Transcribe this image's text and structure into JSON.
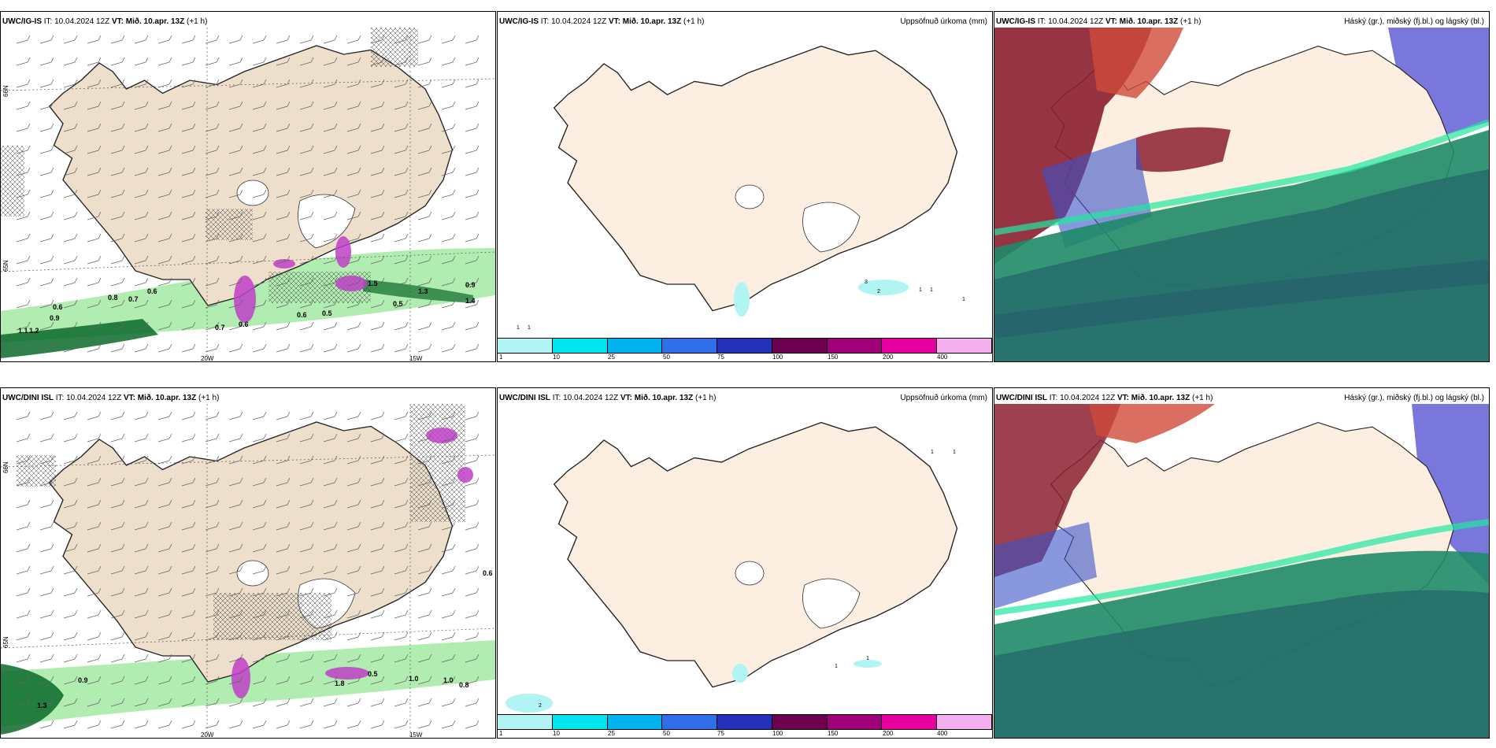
{
  "panels": {
    "top_wind": {
      "model": "UWC/IG-IS",
      "it_label": "IT:",
      "it": "10.04.2024 12Z",
      "vt_label": "VT:",
      "vt": "Mið. 10.apr. 13Z",
      "lead": "(+1 h)",
      "right_title": "",
      "lat_ticks": [
        "66N",
        "65N"
      ],
      "lon_ticks": [
        "20W",
        "15W"
      ],
      "values": [
        "1.1",
        "1.2",
        "0.9",
        "0.6",
        "0.8",
        "0.7",
        "0.6",
        "0.7",
        "0.6",
        "0.6",
        "0.5",
        "1.5",
        "0.5",
        "1.3",
        "0.9",
        "1.4"
      ]
    },
    "top_precip": {
      "model": "UWC/IG-IS",
      "it_label": "IT:",
      "it": "10.04.2024 12Z",
      "vt_label": "VT:",
      "vt": "Mið. 10.apr. 13Z",
      "lead": "(+1 h)",
      "right_title": "Uppsöfnuð úrkoma (mm)",
      "values": [
        "1",
        "1",
        "3",
        "2",
        "1",
        "1",
        "1"
      ]
    },
    "top_cloud": {
      "model": "UWC/IG-IS",
      "it_label": "IT:",
      "it": "10.04.2024 12Z",
      "vt_label": "VT:",
      "vt": "Mið. 10.apr. 13Z",
      "lead": "(+1 h)",
      "right_title": "Háský (gr.), miðský (fj.bl.) og lágský (bl.)"
    },
    "bot_wind": {
      "model": "UWC/DINI ISL",
      "it_label": "IT:",
      "it": "10.04.2024 12Z",
      "vt_label": "VT:",
      "vt": "Mið. 10.apr. 13Z",
      "lead": "(+1 h)",
      "right_title": "",
      "lat_ticks": [
        "66N",
        "65N"
      ],
      "lon_ticks": [
        "20W",
        "15W"
      ],
      "values": [
        "0.9",
        "1.3",
        "1.8",
        "0.5",
        "1.0",
        "1.0",
        "0.8",
        "0.6"
      ]
    },
    "bot_precip": {
      "model": "UWC/DINI ISL",
      "it_label": "IT:",
      "it": "10.04.2024 12Z",
      "vt_label": "VT:",
      "vt": "Mið. 10.apr. 13Z",
      "lead": "(+1 h)",
      "right_title": "Uppsöfnuð úrkoma (mm)",
      "values": [
        "1",
        "1",
        "1",
        "1",
        "2"
      ]
    },
    "bot_cloud": {
      "model": "UWC/DINI ISL",
      "it_label": "IT:",
      "it": "10.04.2024 12Z",
      "vt_label": "VT:",
      "vt": "Mið. 10.apr. 13Z",
      "lead": "(+1 h)",
      "right_title": "Háský (gr.), miðský (fj.bl.) og lágský (bl.)"
    }
  },
  "colorbar": {
    "labels": [
      "1",
      "10",
      "25",
      "50",
      "75",
      "100",
      "150",
      "200",
      "400"
    ],
    "colors": [
      "#b0f4f4",
      "#00e5ee",
      "#00b2ee",
      "#2e6ee8",
      "#2231b8",
      "#6e0050",
      "#a0007a",
      "#e600a0",
      "#f4b0ee"
    ]
  },
  "colors": {
    "land": "#eedfcc",
    "land_light": "#fcefe2",
    "sea": "#ffffff",
    "precip_green": "#7ee08a",
    "precip_dark": "#0a6a2a",
    "magenta": "#c040c8",
    "high_cloud": "#8c1e30",
    "mid_cloud": "#3b52c8",
    "low_cloud": "#1e8060"
  }
}
